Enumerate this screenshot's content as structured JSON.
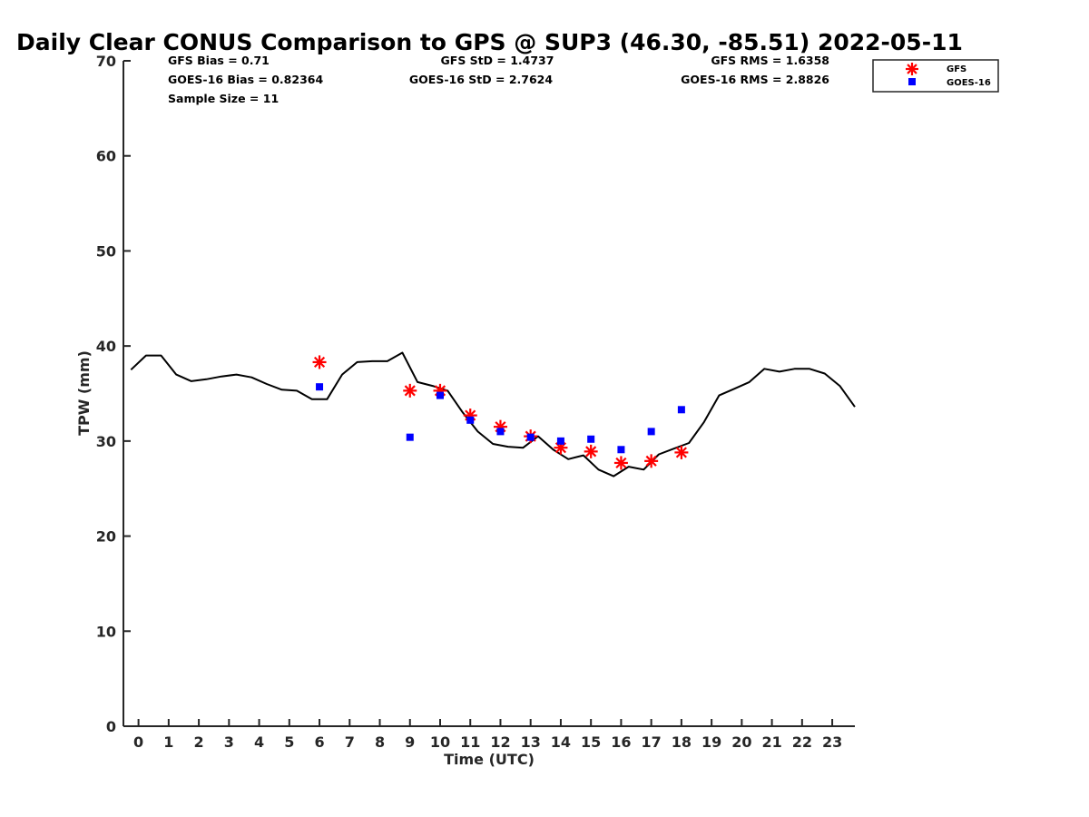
{
  "chart_data": {
    "type": "scatter",
    "title": "Daily Clear CONUS Comparison to GPS @ SUP3 (46.30, -85.51) 2022-05-11",
    "xlabel": "Time (UTC)",
    "ylabel": "TPW (mm)",
    "xlim": [
      -0.5,
      23.75
    ],
    "ylim": [
      0,
      70
    ],
    "x_ticks": [
      0,
      1,
      2,
      3,
      4,
      5,
      6,
      7,
      8,
      9,
      10,
      11,
      12,
      13,
      14,
      15,
      16,
      17,
      18,
      19,
      20,
      21,
      22,
      23
    ],
    "y_ticks": [
      0,
      10,
      20,
      30,
      40,
      50,
      60,
      70
    ],
    "grid": false,
    "legend_position": "top-right",
    "stats": [
      {
        "text": "GFS Bias = 0.71"
      },
      {
        "text": "GFS StD = 1.4737"
      },
      {
        "text": "GFS RMS = 1.6358"
      },
      {
        "text": "GOES-16 Bias = 0.82364"
      },
      {
        "text": "GOES-16 StD = 2.7624"
      },
      {
        "text": "GOES-16 RMS = 2.8826"
      },
      {
        "text": "Sample Size = 11"
      }
    ],
    "series": [
      {
        "name": "GFS",
        "marker": "asterisk",
        "color": "#ff0000",
        "x": [
          6,
          9,
          10,
          11,
          12,
          13,
          14,
          15,
          16,
          17,
          18
        ],
        "y": [
          38.3,
          35.3,
          35.3,
          32.7,
          31.5,
          30.5,
          29.3,
          28.9,
          27.7,
          27.9,
          28.8
        ]
      },
      {
        "name": "GOES-16",
        "marker": "square",
        "color": "#0000ff",
        "x": [
          6,
          9,
          10,
          11,
          12,
          13,
          14,
          15,
          16,
          17,
          18
        ],
        "y": [
          35.7,
          30.4,
          34.8,
          32.2,
          31.0,
          30.4,
          30.0,
          30.2,
          29.1,
          31.0,
          33.3
        ]
      },
      {
        "marker": "line",
        "color": "#000000",
        "x": [
          -0.25,
          0.25,
          0.75,
          1.25,
          1.75,
          2.25,
          2.75,
          3.25,
          3.75,
          4.25,
          4.75,
          5.25,
          5.75,
          6.25,
          6.75,
          7.25,
          7.75,
          8.25,
          8.75,
          9.25,
          9.75,
          10.25,
          10.75,
          11.25,
          11.75,
          12.25,
          12.75,
          13.25,
          13.75,
          14.25,
          14.75,
          15.25,
          15.75,
          16.25,
          16.75,
          17.25,
          17.75,
          18.25,
          18.75,
          19.25,
          19.75,
          20.25,
          20.75,
          21.25,
          21.75,
          22.25,
          22.75,
          23.25,
          23.75
        ],
        "y": [
          37.5,
          39.0,
          39.0,
          37.0,
          36.3,
          36.5,
          36.8,
          37.0,
          36.7,
          36.0,
          35.4,
          35.3,
          34.4,
          34.4,
          37.0,
          38.3,
          38.4,
          38.4,
          39.3,
          36.2,
          35.8,
          35.3,
          33.0,
          31.0,
          29.7,
          29.4,
          29.3,
          30.5,
          29.1,
          28.1,
          28.5,
          27.0,
          26.3,
          27.3,
          27.0,
          28.6,
          29.2,
          29.8,
          32.0,
          34.8,
          35.5,
          36.2,
          37.6,
          37.3,
          37.6,
          37.6,
          37.1,
          35.8,
          33.6
        ]
      }
    ]
  }
}
